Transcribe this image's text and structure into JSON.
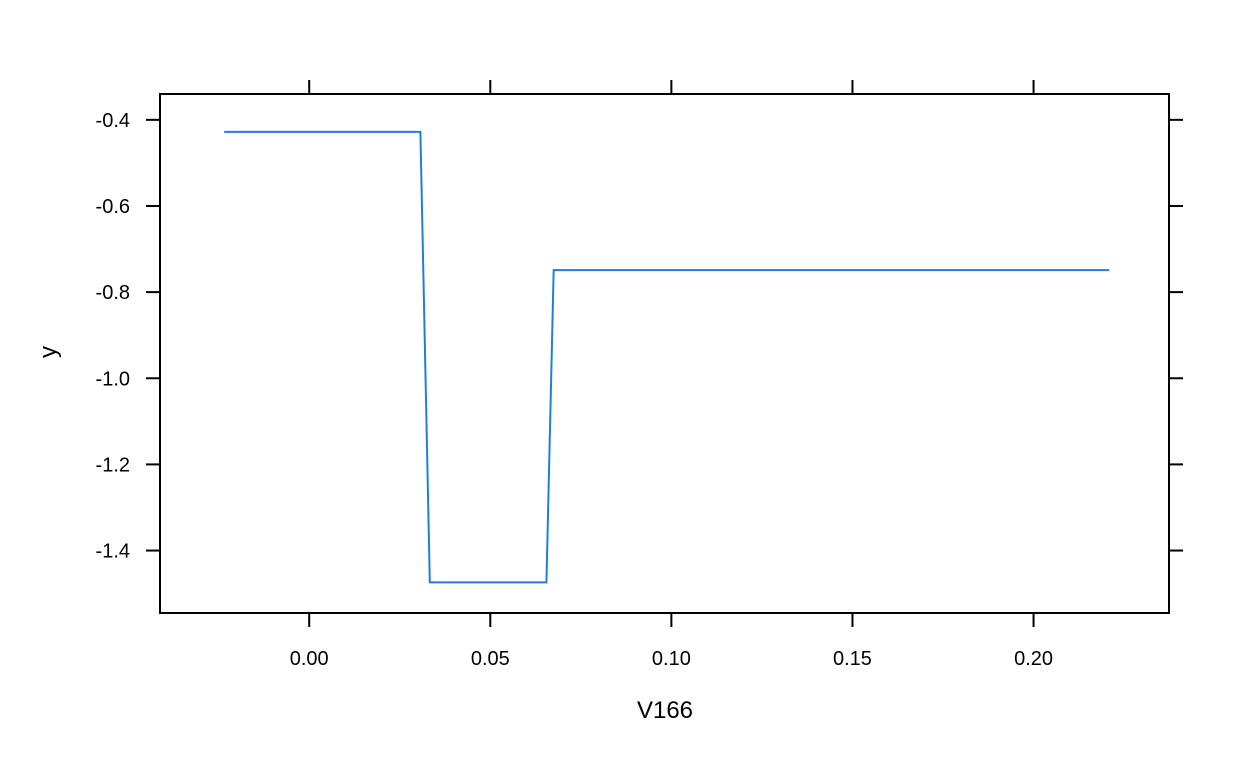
{
  "chart_data": {
    "type": "line",
    "title": "",
    "xlabel": "V166",
    "ylabel": "y",
    "xlim": [
      -0.0412,
      0.2374
    ],
    "ylim": [
      -1.545,
      -0.34
    ],
    "grid": false,
    "legend": "none",
    "x_ticks": [
      {
        "value": 0.0,
        "label": "0.00"
      },
      {
        "value": 0.05,
        "label": "0.05"
      },
      {
        "value": 0.1,
        "label": "0.10"
      },
      {
        "value": 0.15,
        "label": "0.15"
      },
      {
        "value": 0.2,
        "label": "0.20"
      }
    ],
    "y_ticks": [
      {
        "value": -0.4,
        "label": "-0.4"
      },
      {
        "value": -0.6,
        "label": "-0.6"
      },
      {
        "value": -0.8,
        "label": "-0.8"
      },
      {
        "value": -1.0,
        "label": "-1.0"
      },
      {
        "value": -1.2,
        "label": "-1.2"
      },
      {
        "value": -1.4,
        "label": "-1.4"
      }
    ],
    "series": [
      {
        "color": "#1f7fd8",
        "x": [
          -0.0235,
          0.0307,
          0.0333,
          0.0655,
          0.0675,
          0.2209
        ],
        "y": [
          -0.428,
          -0.428,
          -1.474,
          -1.474,
          -0.749,
          -0.749
        ]
      }
    ]
  }
}
